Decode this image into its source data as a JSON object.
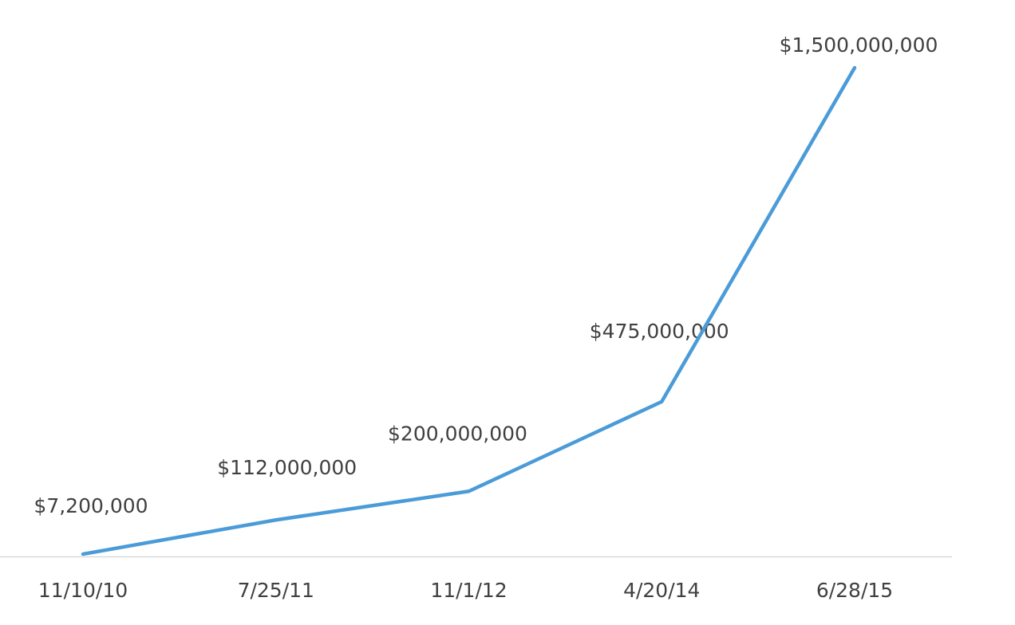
{
  "chart_data": {
    "type": "line",
    "categories": [
      "11/10/10",
      "7/25/11",
      "11/1/12",
      "4/20/14",
      "6/28/15"
    ],
    "series": [
      {
        "color": "#4a9bd8",
        "values": [
          7200000,
          112000000,
          200000000,
          475000000,
          1500000000
        ],
        "value_labels": [
          "$7,200,000",
          "$112,000,000",
          "$200,000,000",
          "$475,000,000",
          "$1,500,000,000"
        ]
      }
    ]
  }
}
